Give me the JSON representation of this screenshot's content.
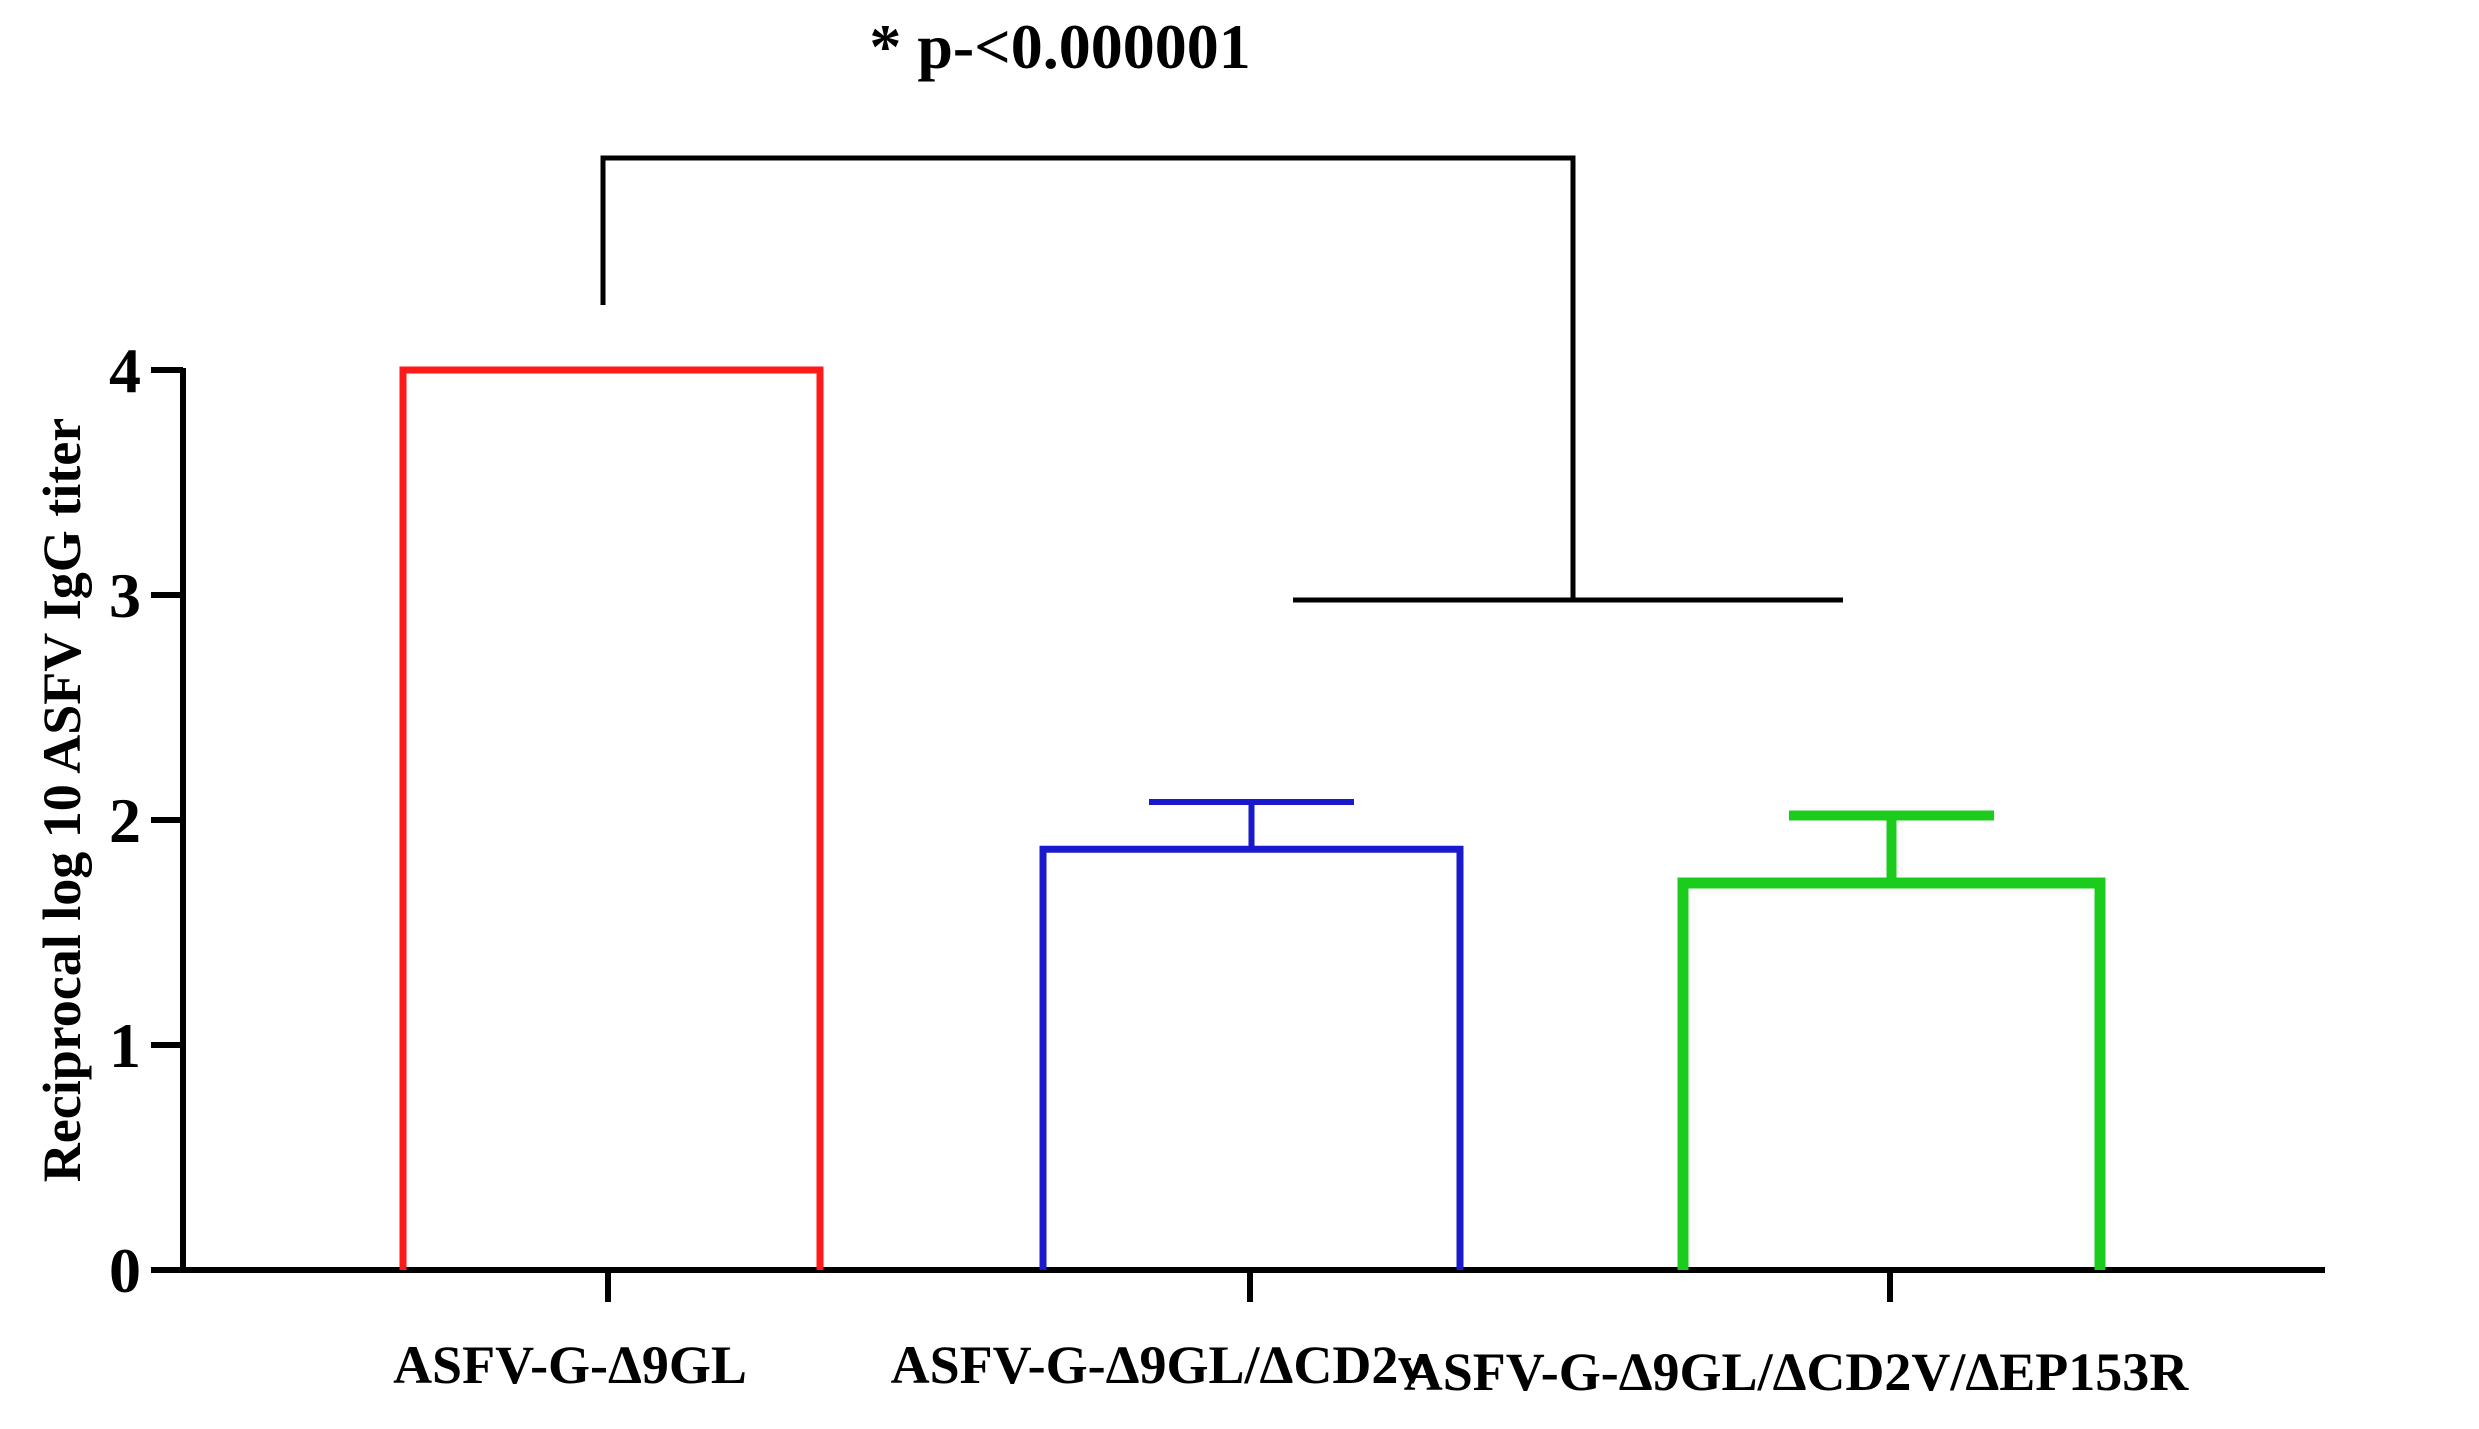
{
  "chart_data": {
    "type": "bar",
    "title": "",
    "xlabel": "",
    "ylabel": "Reciprocal log 10 ASFV IgG titer",
    "ylim": [
      0,
      4
    ],
    "yticks": [
      "0",
      "1",
      "2",
      "3",
      "4"
    ],
    "grid": false,
    "categories": [
      "ASFV-G-Δ9GL",
      "ASFV-G-Δ9GL/ΔCD2v",
      "ASFV-G-Δ9GL/ΔCD2V/ΔEP153R"
    ],
    "values": [
      4.0,
      1.87,
      1.72
    ],
    "errors": [
      0,
      0.21,
      0.3
    ],
    "bar_style": "outline",
    "colors": [
      "#ff1a1a",
      "#1a1acc",
      "#1ccc1c"
    ],
    "annotations": [
      {
        "text": "* p-<0.000001",
        "type": "significance-bracket",
        "from_category": 0,
        "to_categories": [
          1,
          2
        ]
      }
    ]
  }
}
